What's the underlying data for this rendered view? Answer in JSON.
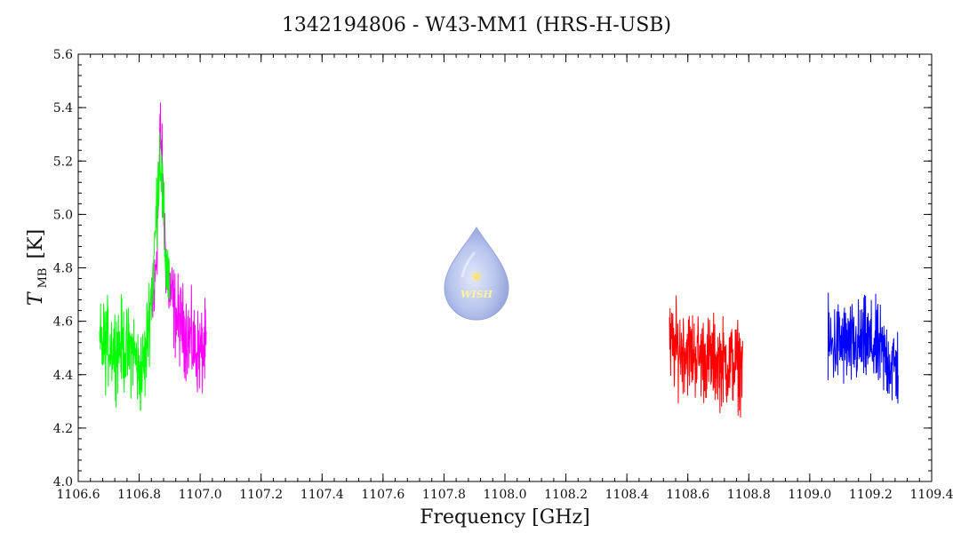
{
  "chart_data": {
    "type": "line",
    "title": "1342194806 - W43-MM1 (HRS-H-USB)",
    "xlabel": "Frequency [GHz]",
    "ylabel": {
      "symbol": "T",
      "subscript": "MB",
      "unit": "[K]"
    },
    "xlim": [
      1106.6,
      1109.4
    ],
    "ylim": [
      4.0,
      5.6
    ],
    "x_ticks": [
      "1106.6",
      "1106.8",
      "1107.0",
      "1107.2",
      "1107.4",
      "1107.6",
      "1107.8",
      "1108.0",
      "1108.2",
      "1108.4",
      "1108.6",
      "1108.8",
      "1109.0",
      "1109.2",
      "1109.4"
    ],
    "y_ticks": [
      "4.0",
      "4.2",
      "4.4",
      "4.6",
      "4.8",
      "5.0",
      "5.2",
      "5.4",
      "5.6"
    ],
    "grid": false,
    "logo": {
      "text": "WISH",
      "color": "#a9b8e6"
    },
    "series": [
      {
        "color": "#ff00ff",
        "points": [
          [
            1106.84,
            4.62
          ],
          [
            1106.85,
            4.7
          ],
          [
            1106.86,
            4.95
          ],
          [
            1106.87,
            5.33
          ],
          [
            1106.88,
            5.0
          ],
          [
            1106.89,
            4.8
          ],
          [
            1106.9,
            4.72
          ],
          [
            1106.92,
            4.62
          ],
          [
            1106.94,
            4.58
          ],
          [
            1106.96,
            4.55
          ],
          [
            1106.98,
            4.5
          ],
          [
            1107.0,
            4.48
          ],
          [
            1107.02,
            4.5
          ]
        ]
      },
      {
        "color": "#00ff00",
        "points": [
          [
            1106.67,
            4.5
          ],
          [
            1106.7,
            4.52
          ],
          [
            1106.72,
            4.5
          ],
          [
            1106.74,
            4.52
          ],
          [
            1106.76,
            4.48
          ],
          [
            1106.78,
            4.5
          ],
          [
            1106.8,
            4.4
          ],
          [
            1106.82,
            4.45
          ],
          [
            1106.83,
            4.6
          ],
          [
            1106.84,
            4.7
          ],
          [
            1106.85,
            4.85
          ],
          [
            1106.86,
            5.1
          ],
          [
            1106.87,
            5.25
          ],
          [
            1106.88,
            4.95
          ],
          [
            1106.89,
            4.8
          ],
          [
            1106.9,
            4.75
          ]
        ]
      },
      {
        "color": "#ff0000",
        "points": [
          [
            1108.54,
            4.5
          ],
          [
            1108.58,
            4.5
          ],
          [
            1108.62,
            4.48
          ],
          [
            1108.66,
            4.46
          ],
          [
            1108.7,
            4.45
          ],
          [
            1108.74,
            4.44
          ],
          [
            1108.78,
            4.44
          ]
        ]
      },
      {
        "color": "#0000ff",
        "points": [
          [
            1109.06,
            4.5
          ],
          [
            1109.1,
            4.52
          ],
          [
            1109.14,
            4.5
          ],
          [
            1109.18,
            4.52
          ],
          [
            1109.22,
            4.5
          ],
          [
            1109.26,
            4.45
          ],
          [
            1109.29,
            4.42
          ]
        ]
      }
    ]
  }
}
